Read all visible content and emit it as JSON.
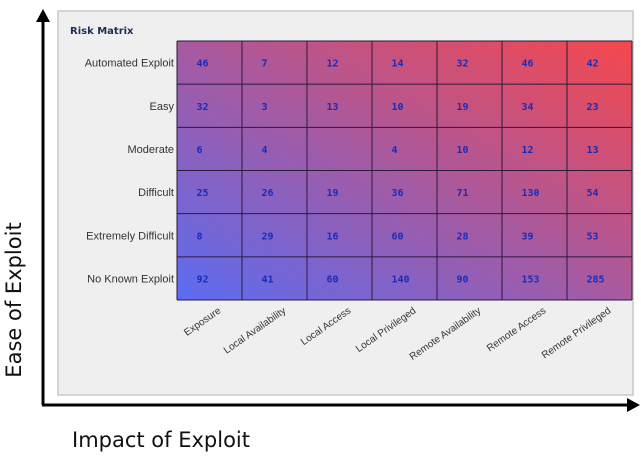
{
  "chart_data": {
    "type": "heatmap",
    "title": "Risk Matrix",
    "xlabel": "Impact of Exploit",
    "ylabel": "Ease of Exploit",
    "rows": [
      "Automated Exploit",
      "Easy",
      "Moderate",
      "Difficult",
      "Extremely Difficult",
      "No Known Exploit"
    ],
    "columns": [
      "Exposure",
      "Local Availability",
      "Local Access",
      "Local Privileged",
      "Remote Availability",
      "Remote Access",
      "Remote Privileged"
    ],
    "values": [
      [
        46,
        7,
        12,
        14,
        32,
        46,
        42
      ],
      [
        32,
        3,
        13,
        10,
        19,
        34,
        23
      ],
      [
        6,
        4,
        null,
        4,
        10,
        12,
        13
      ],
      [
        25,
        26,
        19,
        36,
        71,
        130,
        54
      ],
      [
        8,
        29,
        16,
        60,
        28,
        39,
        53
      ],
      [
        92,
        41,
        60,
        140,
        90,
        153,
        285
      ]
    ],
    "color_low": "#5b6cf2",
    "color_high": "#f5474c",
    "value_text_color": "#1a2bb8",
    "grid": true
  }
}
